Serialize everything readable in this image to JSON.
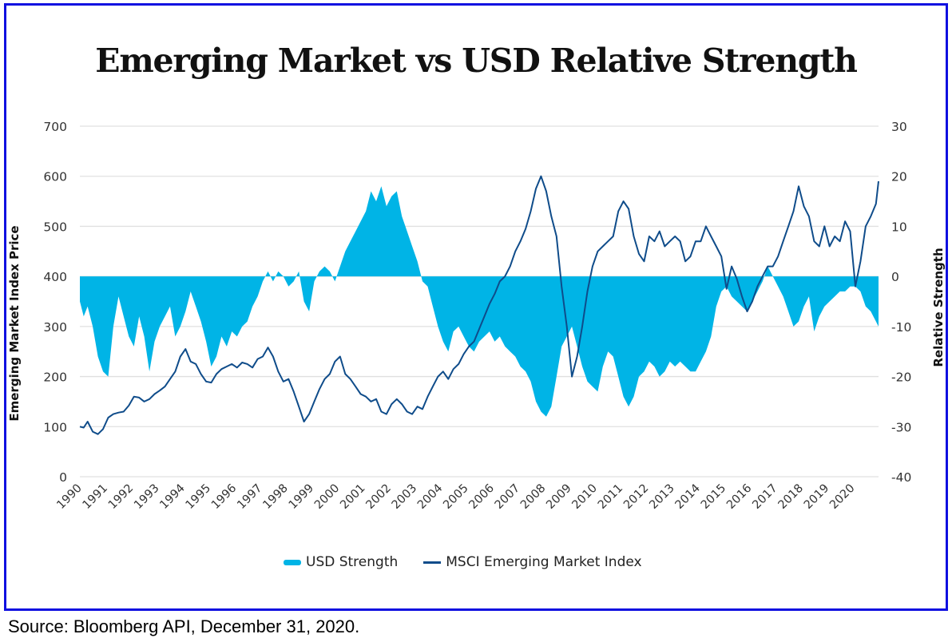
{
  "chart_data": {
    "type": "line",
    "title": "Emerging Market vs USD Relative Strength",
    "xlabel": "",
    "ylabel": "Emerging Market Index Price",
    "y2label": "Relative Strength",
    "ylim": [
      0,
      700
    ],
    "y2lim": [
      -40,
      30
    ],
    "yticks": [
      0,
      100,
      200,
      300,
      400,
      500,
      600,
      700
    ],
    "y2ticks": [
      -40,
      -30,
      -20,
      -10,
      0,
      10,
      20,
      30
    ],
    "xlim": [
      1990,
      2021
    ],
    "xticks": [
      "1990",
      "1991",
      "1992",
      "1993",
      "1994",
      "1995",
      "1996",
      "1997",
      "1998",
      "1999",
      "2000",
      "2001",
      "2002",
      "2003",
      "2004",
      "2005",
      "2006",
      "2007",
      "2008",
      "2009",
      "2010",
      "2011",
      "2012",
      "2013",
      "2014",
      "2015",
      "2016",
      "2017",
      "2018",
      "2019",
      "2020"
    ],
    "grid": true,
    "legend_position": "bottom-center",
    "series": [
      {
        "name": "USD Strength",
        "type": "area",
        "axis": "right",
        "color": "#00b4e6",
        "x": [
          1990.0,
          1990.15,
          1990.3,
          1990.5,
          1990.7,
          1990.9,
          1991.1,
          1991.3,
          1991.5,
          1991.7,
          1991.9,
          1992.1,
          1992.3,
          1992.5,
          1992.7,
          1992.9,
          1993.1,
          1993.3,
          1993.5,
          1993.7,
          1993.9,
          1994.1,
          1994.3,
          1994.5,
          1994.7,
          1994.9,
          1995.1,
          1995.3,
          1995.5,
          1995.7,
          1995.9,
          1996.1,
          1996.3,
          1996.5,
          1996.7,
          1996.9,
          1997.1,
          1997.3,
          1997.5,
          1997.7,
          1997.9,
          1998.1,
          1998.3,
          1998.5,
          1998.7,
          1998.9,
          1999.1,
          1999.3,
          1999.5,
          1999.7,
          1999.9,
          2000.1,
          2000.3,
          2000.5,
          2000.7,
          2000.9,
          2001.1,
          2001.3,
          2001.5,
          2001.7,
          2001.9,
          2002.1,
          2002.3,
          2002.5,
          2002.7,
          2002.9,
          2003.1,
          2003.3,
          2003.5,
          2003.7,
          2003.9,
          2004.1,
          2004.3,
          2004.5,
          2004.7,
          2004.9,
          2005.1,
          2005.3,
          2005.5,
          2005.7,
          2005.9,
          2006.1,
          2006.3,
          2006.5,
          2006.7,
          2006.9,
          2007.1,
          2007.3,
          2007.5,
          2007.7,
          2007.9,
          2008.1,
          2008.3,
          2008.5,
          2008.7,
          2008.9,
          2009.1,
          2009.3,
          2009.5,
          2009.7,
          2009.9,
          2010.1,
          2010.3,
          2010.5,
          2010.7,
          2010.9,
          2011.1,
          2011.3,
          2011.5,
          2011.7,
          2011.9,
          2012.1,
          2012.3,
          2012.5,
          2012.7,
          2012.9,
          2013.1,
          2013.3,
          2013.5,
          2013.7,
          2013.9,
          2014.1,
          2014.3,
          2014.5,
          2014.7,
          2014.9,
          2015.1,
          2015.3,
          2015.5,
          2015.7,
          2015.9,
          2016.1,
          2016.3,
          2016.5,
          2016.7,
          2016.9,
          2017.1,
          2017.3,
          2017.5,
          2017.7,
          2017.9,
          2018.1,
          2018.3,
          2018.5,
          2018.7,
          2018.9,
          2019.1,
          2019.3,
          2019.5,
          2019.7,
          2019.9,
          2020.1,
          2020.3,
          2020.5,
          2020.7,
          2020.9,
          2021.0
        ],
        "values": [
          -5,
          -8,
          -6,
          -10,
          -16,
          -19,
          -20,
          -10,
          -4,
          -8,
          -12,
          -14,
          -8,
          -12,
          -19,
          -13,
          -10,
          -8,
          -6,
          -12,
          -10,
          -7,
          -3,
          -6,
          -9,
          -13,
          -18,
          -16,
          -12,
          -14,
          -11,
          -12,
          -10,
          -9,
          -6,
          -4,
          -1,
          1,
          -1,
          1,
          0,
          -2,
          -1,
          1,
          -5,
          -7,
          -1,
          1,
          2,
          1,
          -1,
          2,
          5,
          7,
          9,
          11,
          13,
          17,
          15,
          18,
          14,
          16,
          17,
          12,
          9,
          6,
          3,
          -1,
          -2,
          -6,
          -10,
          -13,
          -15,
          -11,
          -10,
          -12,
          -14,
          -15,
          -13,
          -12,
          -11,
          -13,
          -12,
          -14,
          -15,
          -16,
          -18,
          -19,
          -21,
          -25,
          -27,
          -28,
          -26,
          -20,
          -14,
          -12,
          -10,
          -14,
          -18,
          -21,
          -22,
          -23,
          -18,
          -15,
          -16,
          -20,
          -24,
          -26,
          -24,
          -20,
          -19,
          -17,
          -18,
          -20,
          -19,
          -17,
          -18,
          -17,
          -18,
          -19,
          -19,
          -17,
          -15,
          -12,
          -6,
          -3,
          -2,
          -4,
          -5,
          -6,
          -7,
          -5,
          -3,
          -1,
          2,
          0,
          -2,
          -4,
          -7,
          -10,
          -9,
          -6,
          -4,
          -11,
          -8,
          -6,
          -5,
          -4,
          -3,
          -3,
          -2,
          -2,
          -3,
          -6,
          -7,
          -9,
          -10
        ],
        "fill_baseline": 0
      },
      {
        "name": "MSCI Emerging Market Index",
        "type": "line",
        "axis": "left",
        "color": "#0f4c8a",
        "x": [
          1990.0,
          1990.15,
          1990.3,
          1990.5,
          1990.7,
          1990.9,
          1991.1,
          1991.3,
          1991.5,
          1991.7,
          1991.9,
          1992.1,
          1992.3,
          1992.5,
          1992.7,
          1992.9,
          1993.1,
          1993.3,
          1993.5,
          1993.7,
          1993.9,
          1994.1,
          1994.3,
          1994.5,
          1994.7,
          1994.9,
          1995.1,
          1995.3,
          1995.5,
          1995.7,
          1995.9,
          1996.1,
          1996.3,
          1996.5,
          1996.7,
          1996.9,
          1997.1,
          1997.3,
          1997.5,
          1997.7,
          1997.9,
          1998.1,
          1998.3,
          1998.5,
          1998.7,
          1998.9,
          1999.1,
          1999.3,
          1999.5,
          1999.7,
          1999.9,
          2000.1,
          2000.3,
          2000.5,
          2000.7,
          2000.9,
          2001.1,
          2001.3,
          2001.5,
          2001.7,
          2001.9,
          2002.1,
          2002.3,
          2002.5,
          2002.7,
          2002.9,
          2003.1,
          2003.3,
          2003.5,
          2003.7,
          2003.9,
          2004.1,
          2004.3,
          2004.5,
          2004.7,
          2004.9,
          2005.1,
          2005.3,
          2005.5,
          2005.7,
          2005.9,
          2006.1,
          2006.3,
          2006.5,
          2006.7,
          2006.9,
          2007.1,
          2007.3,
          2007.5,
          2007.7,
          2007.9,
          2008.1,
          2008.3,
          2008.5,
          2008.7,
          2008.9,
          2009.1,
          2009.3,
          2009.5,
          2009.7,
          2009.9,
          2010.1,
          2010.3,
          2010.5,
          2010.7,
          2010.9,
          2011.1,
          2011.3,
          2011.5,
          2011.7,
          2011.9,
          2012.1,
          2012.3,
          2012.5,
          2012.7,
          2012.9,
          2013.1,
          2013.3,
          2013.5,
          2013.7,
          2013.9,
          2014.1,
          2014.3,
          2014.5,
          2014.7,
          2014.9,
          2015.1,
          2015.3,
          2015.5,
          2015.7,
          2015.9,
          2016.1,
          2016.3,
          2016.5,
          2016.7,
          2016.9,
          2017.1,
          2017.3,
          2017.5,
          2017.7,
          2017.9,
          2018.1,
          2018.3,
          2018.5,
          2018.7,
          2018.9,
          2019.1,
          2019.3,
          2019.5,
          2019.7,
          2019.9,
          2020.1,
          2020.3,
          2020.5,
          2020.7,
          2020.9,
          2021.0
        ],
        "values": [
          100,
          98,
          110,
          90,
          85,
          95,
          118,
          125,
          128,
          130,
          142,
          160,
          158,
          150,
          155,
          165,
          172,
          180,
          195,
          210,
          240,
          255,
          230,
          225,
          205,
          190,
          188,
          205,
          215,
          220,
          225,
          218,
          228,
          225,
          218,
          235,
          240,
          258,
          240,
          210,
          190,
          195,
          170,
          140,
          110,
          125,
          150,
          175,
          195,
          205,
          230,
          240,
          205,
          195,
          180,
          165,
          160,
          150,
          155,
          130,
          125,
          145,
          155,
          145,
          130,
          125,
          140,
          135,
          160,
          180,
          200,
          210,
          195,
          215,
          225,
          245,
          260,
          270,
          295,
          320,
          345,
          365,
          390,
          400,
          420,
          450,
          470,
          495,
          530,
          575,
          600,
          570,
          520,
          480,
          380,
          300,
          200,
          240,
          300,
          370,
          420,
          450,
          460,
          470,
          480,
          530,
          550,
          535,
          480,
          445,
          430,
          480,
          470,
          490,
          460,
          470,
          480,
          470,
          430,
          440,
          470,
          470,
          500,
          480,
          460,
          440,
          375,
          420,
          395,
          360,
          330,
          350,
          380,
          400,
          420,
          420,
          440,
          470,
          500,
          530,
          580,
          540,
          520,
          470,
          460,
          500,
          460,
          480,
          470,
          510,
          490,
          380,
          430,
          500,
          520,
          545,
          590
        ]
      }
    ],
    "legend": [
      "USD Strength",
      "MSCI Emerging Market Index"
    ]
  },
  "source_note": "Source: Bloomberg API, December 31, 2020."
}
